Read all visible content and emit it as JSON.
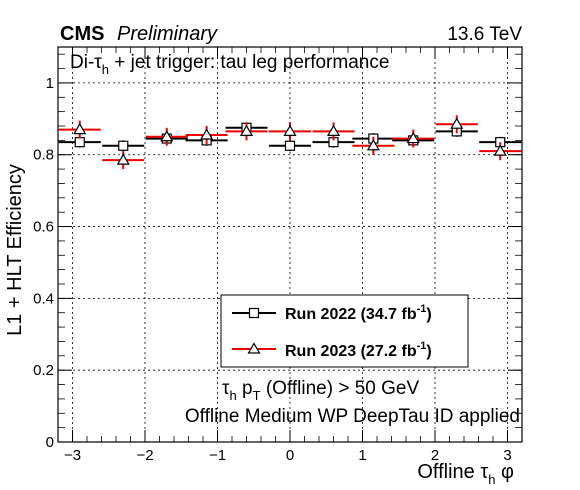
{
  "header": {
    "experiment": "CMS",
    "status": "Preliminary",
    "energy": "13.6 TeV"
  },
  "notes": {
    "line1_main": "τ",
    "line1_sub": "h",
    "line1_rest": " p",
    "line1_sub2": "T",
    "line1_tail": " (Offline) > 50 GeV",
    "line2": "Offline Medium WP DeepTau ID applied"
  },
  "chart_data": {
    "type": "scatter",
    "title": "",
    "inner_title": {
      "prefix": "Di-τ",
      "sub": "h",
      "suffix": " + jet trigger: tau leg performance"
    },
    "xlabel": {
      "prefix": "Offline τ",
      "sub": "h",
      "suffix": " φ"
    },
    "ylabel": "L1 + HLT Efficiency",
    "xlim": [
      -3.2,
      3.2
    ],
    "ylim": [
      0,
      1.1
    ],
    "xticks": [
      -3,
      -2,
      -1,
      0,
      1,
      2,
      3
    ],
    "xtick_labels": [
      "−3",
      "−2",
      "−1",
      "0",
      "1",
      "2",
      "3"
    ],
    "yticks": [
      0,
      0.2,
      0.4,
      0.6,
      0.8,
      1
    ],
    "ytick_labels": [
      "0",
      "0.2",
      "0.4",
      "0.6",
      "0.8",
      "1"
    ],
    "grid": true,
    "legend_position": "bottom-right",
    "series": [
      {
        "name": "Run 2022 (34.7 fb",
        "name_sup": "-1",
        "name_tail": ")",
        "color": "#000000",
        "marker": "open-square",
        "x": [
          -2.9,
          -2.3,
          -1.7,
          -1.15,
          -0.6,
          0.0,
          0.6,
          1.15,
          1.7,
          2.3,
          2.9
        ],
        "xerr": [
          0.29,
          0.29,
          0.29,
          0.29,
          0.29,
          0.29,
          0.29,
          0.29,
          0.29,
          0.29,
          0.29
        ],
        "y": [
          0.835,
          0.825,
          0.845,
          0.84,
          0.875,
          0.825,
          0.835,
          0.845,
          0.84,
          0.865,
          0.835
        ],
        "yerr": [
          0.015,
          0.015,
          0.015,
          0.015,
          0.015,
          0.015,
          0.015,
          0.015,
          0.015,
          0.015,
          0.015
        ]
      },
      {
        "name": "Run 2023 (27.2 fb",
        "name_sup": "-1",
        "name_tail": ")",
        "color": "#ee0000",
        "marker": "open-triangle",
        "x": [
          -2.9,
          -2.3,
          -1.7,
          -1.15,
          -0.6,
          0.0,
          0.6,
          1.15,
          1.7,
          2.3,
          2.9
        ],
        "xerr": [
          0.29,
          0.29,
          0.29,
          0.29,
          0.29,
          0.29,
          0.29,
          0.29,
          0.29,
          0.29,
          0.29
        ],
        "y": [
          0.87,
          0.785,
          0.85,
          0.855,
          0.865,
          0.865,
          0.865,
          0.825,
          0.845,
          0.885,
          0.81
        ],
        "yerr": [
          0.025,
          0.025,
          0.025,
          0.025,
          0.025,
          0.025,
          0.025,
          0.025,
          0.025,
          0.025,
          0.025
        ]
      }
    ]
  }
}
